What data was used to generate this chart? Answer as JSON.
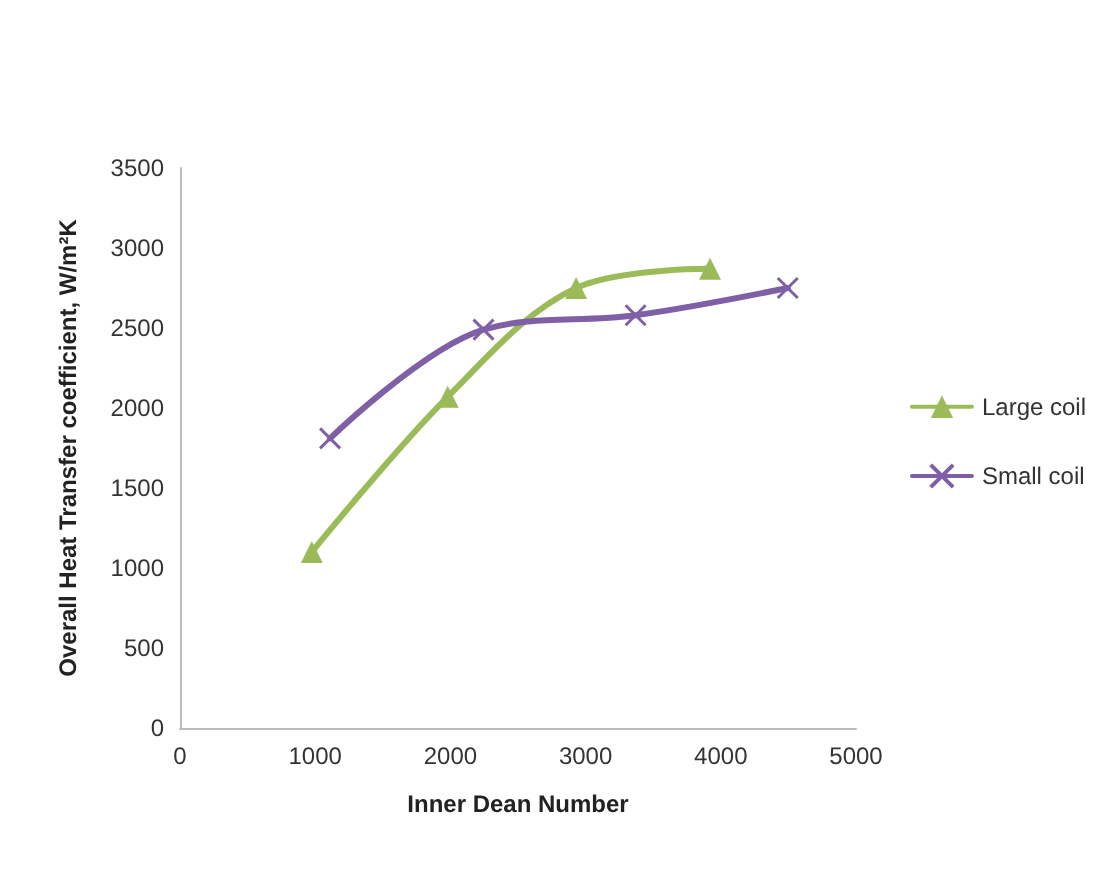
{
  "chart_data": {
    "type": "line",
    "xlabel": "Inner Dean Number",
    "ylabel": "Overall Heat Transfer coefficient, W/m²K",
    "xlim": [
      0,
      5000
    ],
    "xticks": [
      0,
      1000,
      2000,
      3000,
      4000,
      5000
    ],
    "ylim": [
      0,
      3500
    ],
    "yticks": [
      0,
      500,
      1000,
      1500,
      2000,
      2500,
      3000,
      3500
    ],
    "grid": false,
    "legend": "right",
    "series": [
      {
        "name": "Large coil",
        "color": "#9bbb59",
        "marker": "triangle",
        "x": [
          975,
          1980,
          2930,
          3920
        ],
        "values": [
          1100,
          2070,
          2750,
          2870
        ]
      },
      {
        "name": "Small coil",
        "color": "#7f5fa5",
        "marker": "cross",
        "x": [
          1110,
          2245,
          3370,
          4495
        ],
        "values": [
          1810,
          2490,
          2580,
          2750
        ]
      }
    ]
  }
}
